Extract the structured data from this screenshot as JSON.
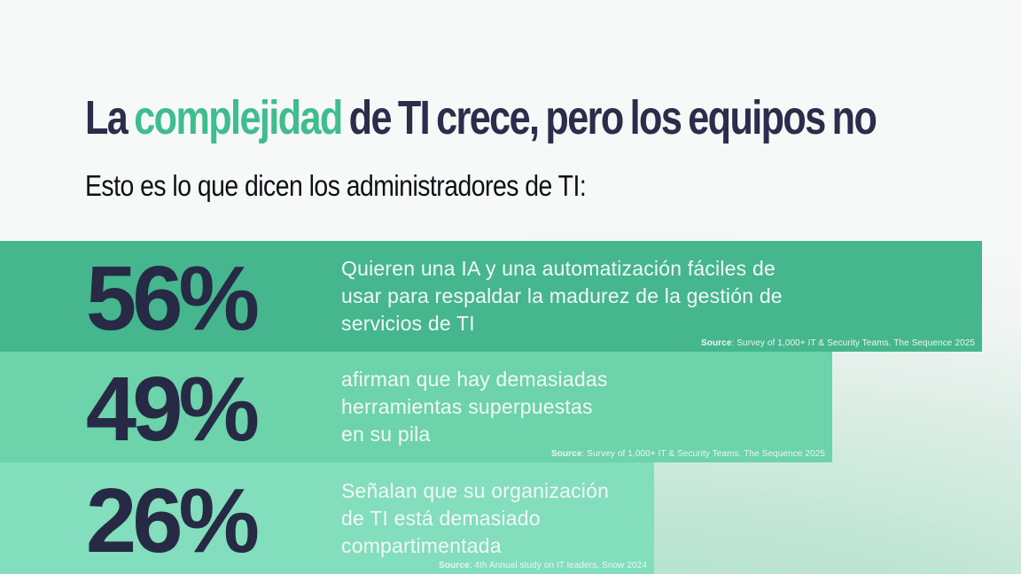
{
  "slide": {
    "title_prefix": "La ",
    "title_highlight": "complejidad",
    "title_suffix": " de TI crece, pero los equipos no",
    "subtitle": "Esto es lo que dicen los administradores de TI:"
  },
  "colors": {
    "title_dark": "#2b2d4b",
    "title_accent": "#3ebd8e",
    "number_dark": "#272a44",
    "bar_text": "#f3f8f5",
    "background_top": "#f7f8f8",
    "background_mint": "#a5ddc6"
  },
  "stats": [
    {
      "value": "56%",
      "description": "Quieren una IA y una automatización fáciles de\nusar para respaldar la madurez de la gestión de\nservicios de TI",
      "source_label": "Source",
      "source_rest": ": Survey of 1,000+ IT & Security Teams. The Sequence 2025",
      "bar_color": "#45b68e"
    },
    {
      "value": "49%",
      "description": "afirman que hay demasiadas\nherramientas superpuestas\nen su pila",
      "source_label": "Source",
      "source_rest": ": Survey of 1,000+ IT & Security Teams. The Sequence 2025",
      "bar_color": "#6cd3ab"
    },
    {
      "value": "26%",
      "description": "Señalan que su organización\nde TI está demasiado\ncompartimentada",
      "source_label": "Source",
      "source_rest": ": 4th Annual study on IT leaders, Snow 2024",
      "bar_color": "#82debc"
    }
  ],
  "chart_data": {
    "type": "bar",
    "orientation": "horizontal",
    "title": "La complejidad de TI crece, pero los equipos no",
    "subtitle": "Esto es lo que dicen los administradores de TI:",
    "categories": [
      "Quieren una IA y una automatización fáciles de usar para respaldar la madurez de la gestión de servicios de TI",
      "afirman que hay demasiadas herramientas superpuestas en su pila",
      "Señalan que su organización de TI está demasiado compartimentada"
    ],
    "values": [
      56,
      49,
      26
    ],
    "unit": "%",
    "legend": "none",
    "grid": false,
    "sources": [
      "Source: Survey of 1,000+ IT & Security Teams. The Sequence 2025",
      "Source: Survey of 1,000+ IT & Security Teams. The Sequence 2025",
      "Source: 4th Annual study on IT leaders, Snow 2024"
    ]
  }
}
